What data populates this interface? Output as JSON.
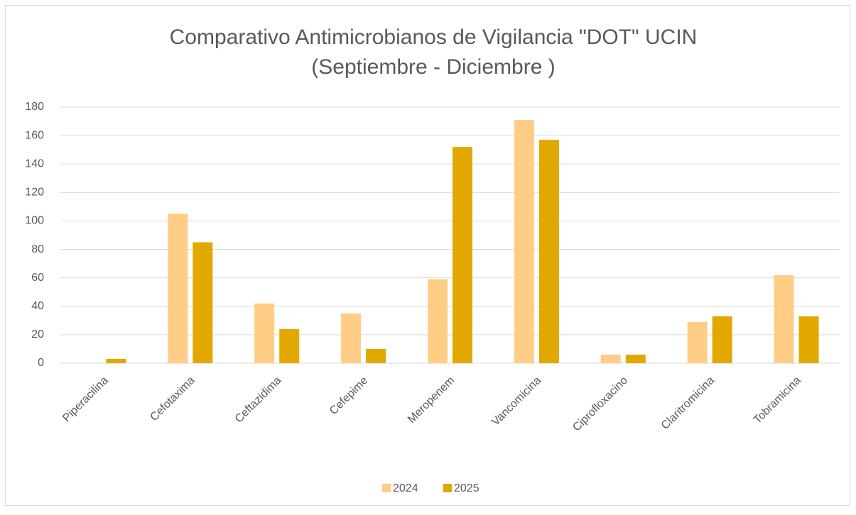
{
  "chart_data": {
    "type": "bar",
    "title": [
      "Comparativo Antimicrobianos de Vigilancia \"DOT\" UCIN",
      "(Septiembre - Diciembre )"
    ],
    "categories": [
      "Piperacilina",
      "Cefotaxima",
      "Ceftazidima",
      "Cefepime",
      "Meropenem",
      "Vancomicina",
      "Ciprofloxacino",
      "Claritromicina",
      "Tobramicina"
    ],
    "series": [
      {
        "name": "2024",
        "color": "#ffcd85",
        "values": [
          0,
          105,
          42,
          35,
          59,
          171,
          6,
          29,
          62
        ]
      },
      {
        "name": "2025",
        "color": "#e2a800",
        "values": [
          3,
          85,
          24,
          10,
          152,
          157,
          6,
          33,
          33
        ]
      }
    ],
    "ylim": [
      0,
      180
    ],
    "yticks": [
      0,
      20,
      40,
      60,
      80,
      100,
      120,
      140,
      160,
      180
    ],
    "grid": true,
    "legend": "bottom"
  }
}
